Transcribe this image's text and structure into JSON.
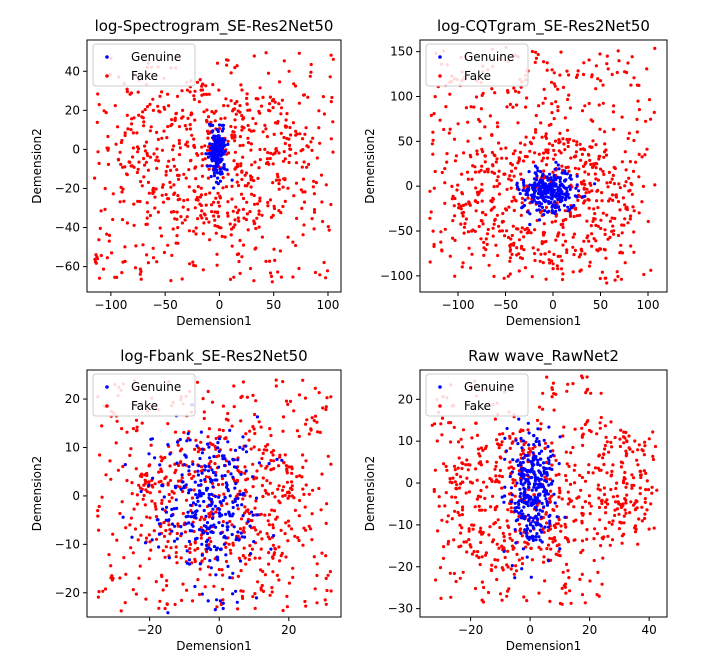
{
  "chart_data": [
    {
      "type": "scatter",
      "title": "log-Spectrogram_SE-Res2Net50",
      "xlabel": "Demension1",
      "ylabel": "Demension2",
      "xlim": [
        -122,
        112
      ],
      "ylim": [
        -73,
        56
      ],
      "xticks": [
        -100,
        -50,
        0,
        50,
        100
      ],
      "yticks": [
        -60,
        -40,
        -20,
        0,
        20,
        40
      ],
      "legend": {
        "position": "top-left",
        "entries": [
          "Genuine",
          "Fake"
        ]
      },
      "series": [
        {
          "name": "Genuine",
          "color": "#0000ff",
          "cloud": {
            "cx": -2,
            "cy": -1,
            "sx": 4,
            "sy": 6,
            "n": 200
          }
        },
        {
          "name": "Fake",
          "color": "#ff0000",
          "cloud": {
            "cx": -5,
            "cy": -5,
            "sx": 55,
            "sy": 25,
            "n": 750,
            "xlim": [
              -115,
              105
            ],
            "ylim": [
              -68,
              50
            ]
          }
        }
      ]
    },
    {
      "type": "scatter",
      "title": "log-CQTgram_SE-Res2Net50",
      "xlabel": "Demension1",
      "ylabel": "Demension2",
      "xlim": [
        -140,
        120
      ],
      "ylim": [
        -118,
        163
      ],
      "xticks": [
        -100,
        -50,
        0,
        50,
        100
      ],
      "yticks": [
        -100,
        -50,
        0,
        50,
        100,
        150
      ],
      "legend": {
        "position": "top-left",
        "entries": [
          "Genuine",
          "Fake"
        ]
      },
      "series": [
        {
          "name": "Genuine",
          "color": "#0000ff",
          "cloud": {
            "cx": -5,
            "cy": -5,
            "sx": 15,
            "sy": 12,
            "n": 280
          }
        },
        {
          "name": "Fake",
          "color": "#ff0000",
          "cloud": {
            "cx": -10,
            "cy": -15,
            "sx": 60,
            "sy": 45,
            "n": 800,
            "xlim": [
              -130,
              108
            ],
            "ylim": [
              -108,
              155
            ]
          }
        }
      ]
    },
    {
      "type": "scatter",
      "title": "log-Fbank_SE-Res2Net50",
      "xlabel": "Demension1",
      "ylabel": "Demension2",
      "xlim": [
        -38,
        35
      ],
      "ylim": [
        -25,
        26
      ],
      "xticks": [
        -20,
        0,
        20
      ],
      "yticks": [
        -20,
        -10,
        0,
        10,
        20
      ],
      "legend": {
        "position": "top-left",
        "entries": [
          "Genuine",
          "Fake"
        ]
      },
      "series": [
        {
          "name": "Genuine",
          "color": "#0000ff",
          "cloud": {
            "cx": -3,
            "cy": -2,
            "sx": 7,
            "sy": 8,
            "n": 320
          }
        },
        {
          "name": "Fake",
          "color": "#ff0000",
          "cloud": {
            "cx": 0,
            "cy": -2,
            "sx": 16,
            "sy": 9,
            "n": 700,
            "xlim": [
              -35,
              33
            ],
            "ylim": [
              -24,
              24
            ]
          }
        }
      ]
    },
    {
      "type": "scatter",
      "title": "Raw wave_RawNet2",
      "xlabel": "Demension1",
      "ylabel": "Demension2",
      "xlim": [
        -37,
        46
      ],
      "ylim": [
        -32,
        27
      ],
      "xticks": [
        -20,
        0,
        20,
        40
      ],
      "yticks": [
        -30,
        -20,
        -10,
        0,
        10,
        20
      ],
      "legend": {
        "position": "top-left",
        "entries": [
          "Genuine",
          "Fake"
        ]
      },
      "series": [
        {
          "name": "Genuine",
          "color": "#0000ff",
          "cloud": {
            "cx": 1,
            "cy": -2,
            "sx": 3.5,
            "sy": 7,
            "n": 320
          }
        },
        {
          "name": "Fake",
          "color": "#ff0000",
          "cloud": {
            "cx": -5,
            "cy": -5,
            "sx": 15,
            "sy": 10,
            "n": 550,
            "xlim": [
              -33,
              25
            ],
            "ylim": [
              -29,
              26
            ]
          }
        },
        {
          "name": "Fake",
          "color": "#ff0000",
          "cloud": {
            "cx": 32,
            "cy": 0,
            "sx": 6,
            "sy": 8,
            "n": 180,
            "xlim": [
              17,
              43
            ],
            "ylim": [
              -15,
              15
            ]
          }
        }
      ]
    }
  ]
}
